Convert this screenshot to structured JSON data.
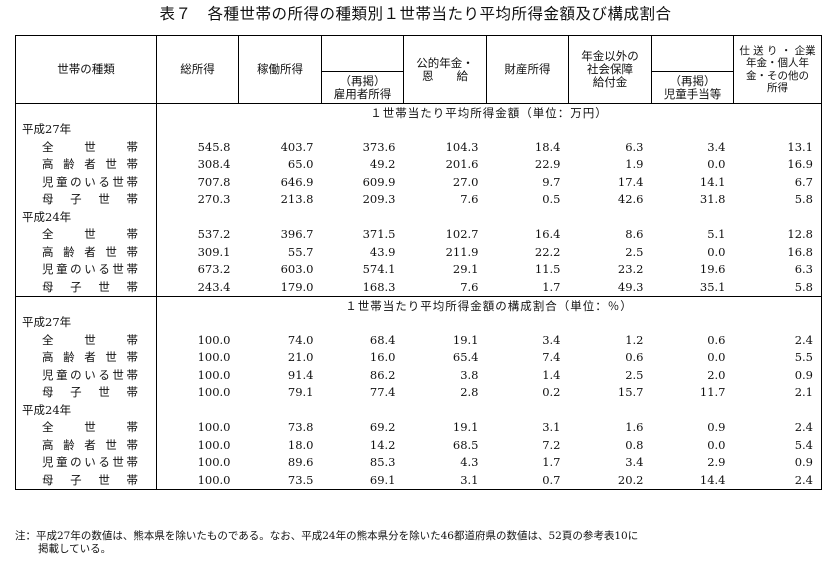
{
  "title": "表７　各種世帯の所得の種類別１世帯当たり平均所得金額及び構成割合",
  "headers": {
    "type": "世帯の種類",
    "total": "総所得",
    "work": "稼働所得",
    "employee_l1": "（再掲）",
    "employee_l2": "雇用者所得",
    "pension_l1": "公的年金・",
    "pension_l2": "恩　　給",
    "property": "財産所得",
    "social_l1": "年金以外の",
    "social_l2": "社会保障",
    "social_l3": "給付金",
    "child_l1": "（再掲）",
    "child_l2": "児童手当等",
    "other_l1": "仕 送 り ・ 企業",
    "other_l2": "年金・個人年",
    "other_l3": "金・その他の",
    "other_l4": "所得"
  },
  "sections": [
    {
      "title": "１世帯当たり平均所得金額（単位：万円）",
      "years": [
        {
          "year": "平成27年",
          "rows": [
            {
              "label": "全　　世　　帯",
              "values": [
                "545.8",
                "403.7",
                "373.6",
                "104.3",
                "18.4",
                "6.3",
                "3.4",
                "13.1"
              ]
            },
            {
              "label": "高 齢 者 世 帯",
              "values": [
                "308.4",
                "65.0",
                "49.2",
                "201.6",
                "22.9",
                "1.9",
                "0.0",
                "16.9"
              ]
            },
            {
              "label": "児童のいる世帯",
              "values": [
                "707.8",
                "646.9",
                "609.9",
                "27.0",
                "9.7",
                "17.4",
                "14.1",
                "6.7"
              ]
            },
            {
              "label": "母　子　世　帯",
              "values": [
                "270.3",
                "213.8",
                "209.3",
                "7.6",
                "0.5",
                "42.6",
                "31.8",
                "5.8"
              ]
            }
          ]
        },
        {
          "year": "平成24年",
          "rows": [
            {
              "label": "全　　世　　帯",
              "values": [
                "537.2",
                "396.7",
                "371.5",
                "102.7",
                "16.4",
                "8.6",
                "5.1",
                "12.8"
              ]
            },
            {
              "label": "高 齢 者 世 帯",
              "values": [
                "309.1",
                "55.7",
                "43.9",
                "211.9",
                "22.2",
                "2.5",
                "0.0",
                "16.8"
              ]
            },
            {
              "label": "児童のいる世帯",
              "values": [
                "673.2",
                "603.0",
                "574.1",
                "29.1",
                "11.5",
                "23.2",
                "19.6",
                "6.3"
              ]
            },
            {
              "label": "母　子　世　帯",
              "values": [
                "243.4",
                "179.0",
                "168.3",
                "7.6",
                "1.7",
                "49.3",
                "35.1",
                "5.8"
              ]
            }
          ]
        }
      ]
    },
    {
      "title": "１世帯当たり平均所得金額の構成割合（単位：％）",
      "years": [
        {
          "year": "平成27年",
          "rows": [
            {
              "label": "全　　世　　帯",
              "values": [
                "100.0",
                "74.0",
                "68.4",
                "19.1",
                "3.4",
                "1.2",
                "0.6",
                "2.4"
              ]
            },
            {
              "label": "高 齢 者 世 帯",
              "values": [
                "100.0",
                "21.0",
                "16.0",
                "65.4",
                "7.4",
                "0.6",
                "0.0",
                "5.5"
              ]
            },
            {
              "label": "児童のいる世帯",
              "values": [
                "100.0",
                "91.4",
                "86.2",
                "3.8",
                "1.4",
                "2.5",
                "2.0",
                "0.9"
              ]
            },
            {
              "label": "母　子　世　帯",
              "values": [
                "100.0",
                "79.1",
                "77.4",
                "2.8",
                "0.2",
                "15.7",
                "11.7",
                "2.1"
              ]
            }
          ]
        },
        {
          "year": "平成24年",
          "rows": [
            {
              "label": "全　　世　　帯",
              "values": [
                "100.0",
                "73.8",
                "69.2",
                "19.1",
                "3.1",
                "1.6",
                "0.9",
                "2.4"
              ]
            },
            {
              "label": "高 齢 者 世 帯",
              "values": [
                "100.0",
                "18.0",
                "14.2",
                "68.5",
                "7.2",
                "0.8",
                "0.0",
                "5.4"
              ]
            },
            {
              "label": "児童のいる世帯",
              "values": [
                "100.0",
                "89.6",
                "85.3",
                "4.3",
                "1.7",
                "3.4",
                "2.9",
                "0.9"
              ]
            },
            {
              "label": "母　子　世　帯",
              "values": [
                "100.0",
                "73.5",
                "69.1",
                "3.1",
                "0.7",
                "20.2",
                "14.4",
                "2.4"
              ]
            }
          ]
        }
      ]
    }
  ],
  "note": {
    "line1": "注：平成27年の数値は、熊本県を除いたものである。なお、平成24年の熊本県分を除いた46都道府県の数値は、52頁の参考表10に",
    "line2": "掲載している。"
  }
}
